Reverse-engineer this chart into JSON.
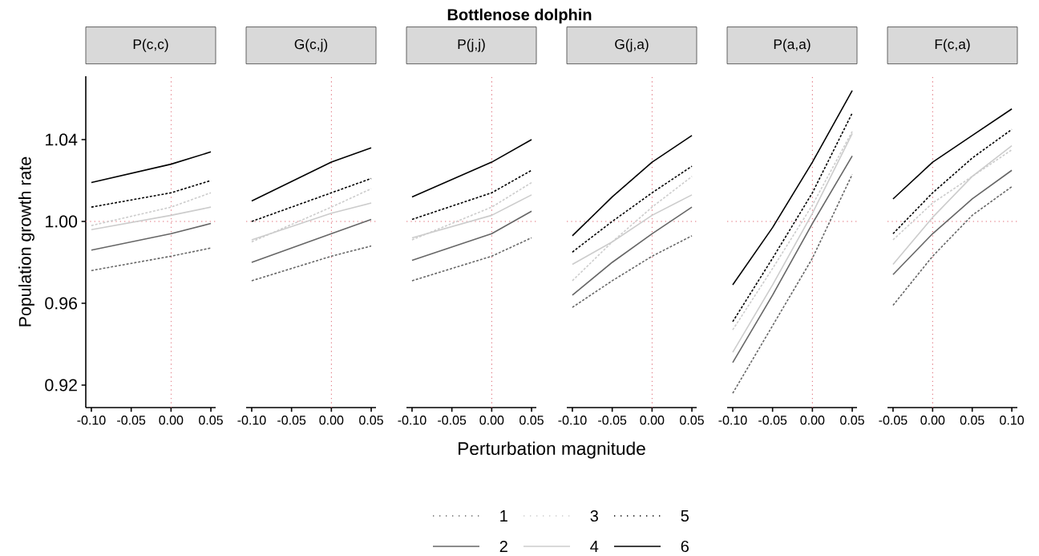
{
  "chart_data": [
    {
      "type": "line",
      "subtitle": "P(c,c)",
      "ylabel": "Population growth rate",
      "legend": "bottom",
      "line_style": "solid",
      "marker": "none",
      "xlim": [
        -0.107,
        0.056
      ],
      "ylim": [
        0.909,
        1.071
      ],
      "xticks": [
        {
          "value": -0.1,
          "label": "-0.10"
        },
        {
          "value": -0.05,
          "label": "-0.05"
        },
        {
          "value": 0,
          "label": "0.00"
        },
        {
          "value": 0.05,
          "label": "0.05"
        }
      ],
      "yticks": [
        {
          "value": 0.92,
          "label": "0.92"
        },
        {
          "value": 0.96,
          "label": "0.96"
        },
        {
          "value": 1.0,
          "label": "1.00"
        },
        {
          "value": 1.04,
          "label": "1.04"
        }
      ],
      "x": [
        -0.1,
        0,
        0.05
      ],
      "series": [
        {
          "name": "1",
          "color": "#666666",
          "line_style": "dotted",
          "values": [
            0.976,
            0.983,
            0.987
          ]
        },
        {
          "name": "2",
          "color": "#666666",
          "values": [
            0.986,
            0.994,
            0.999
          ]
        },
        {
          "name": "3",
          "color": "#cccccc",
          "line_style": "dotted",
          "values": [
            0.998,
            1.007,
            1.014
          ]
        },
        {
          "name": "4",
          "color": "#cccccc",
          "values": [
            0.996,
            1.003,
            1.007
          ]
        },
        {
          "name": "5",
          "color": "#000000",
          "line_style": "dotted",
          "values": [
            1.007,
            1.014,
            1.02
          ]
        },
        {
          "name": "6",
          "color": "#000000",
          "values": [
            1.019,
            1.028,
            1.034
          ]
        }
      ],
      "ref_lines": [
        {
          "axis": "x",
          "value": 0,
          "color": "#e0707a",
          "line_style": "dotted"
        },
        {
          "axis": "y",
          "value": 1.0,
          "color": "#e0707a",
          "line_style": "dotted"
        }
      ]
    },
    {
      "type": "line",
      "subtitle": "G(c,j)",
      "tick_labels": "x",
      "line_style": "solid",
      "marker": "none",
      "xlim": [
        -0.107,
        0.056
      ],
      "ylim": [
        0.909,
        1.071
      ],
      "xticks": [
        {
          "value": -0.1,
          "label": "-0.10"
        },
        {
          "value": -0.05,
          "label": "-0.05"
        },
        {
          "value": 0,
          "label": "0.00"
        },
        {
          "value": 0.05,
          "label": "0.05"
        }
      ],
      "x": [
        -0.1,
        0,
        0.05
      ],
      "series": [
        {
          "color": "#666666",
          "line_style": "dotted",
          "values": [
            0.971,
            0.983,
            0.988
          ]
        },
        {
          "color": "#666666",
          "values": [
            0.98,
            0.994,
            1.001
          ]
        },
        {
          "color": "#cccccc",
          "line_style": "dotted",
          "values": [
            0.99,
            1.007,
            1.016
          ]
        },
        {
          "color": "#cccccc",
          "values": [
            0.991,
            1.004,
            1.009
          ]
        },
        {
          "color": "#000000",
          "line_style": "dotted",
          "values": [
            1.0,
            1.014,
            1.021
          ]
        },
        {
          "color": "#000000",
          "values": [
            1.01,
            1.029,
            1.036
          ]
        }
      ],
      "ref_lines": [
        {
          "axis": "x",
          "value": 0,
          "color": "#e0707a",
          "line_style": "dotted"
        },
        {
          "axis": "y",
          "value": 1.0,
          "color": "#e0707a",
          "line_style": "dotted"
        }
      ]
    },
    {
      "type": "line",
      "title": "Bottlenose dolphin",
      "xlabel": "Perturbation magnitude",
      "subtitle": "P(j,j)",
      "tick_labels": "x",
      "line_style": "solid",
      "marker": "none",
      "xlim": [
        -0.107,
        0.056
      ],
      "ylim": [
        0.909,
        1.071
      ],
      "xticks": [
        {
          "value": -0.1,
          "label": "-0.10"
        },
        {
          "value": -0.05,
          "label": "-0.05"
        },
        {
          "value": 0,
          "label": "0.00"
        },
        {
          "value": 0.05,
          "label": "0.05"
        }
      ],
      "x": [
        -0.1,
        0,
        0.05
      ],
      "series": [
        {
          "color": "#666666",
          "line_style": "dotted",
          "values": [
            0.971,
            0.983,
            0.992
          ]
        },
        {
          "color": "#666666",
          "values": [
            0.981,
            0.994,
            1.005
          ]
        },
        {
          "color": "#cccccc",
          "line_style": "dotted",
          "values": [
            0.991,
            1.007,
            1.019
          ]
        },
        {
          "color": "#cccccc",
          "values": [
            0.992,
            1.003,
            1.013
          ]
        },
        {
          "color": "#000000",
          "line_style": "dotted",
          "values": [
            1.001,
            1.014,
            1.025
          ]
        },
        {
          "color": "#000000",
          "values": [
            1.012,
            1.029,
            1.04
          ]
        }
      ],
      "ref_lines": [
        {
          "axis": "x",
          "value": 0,
          "color": "#e0707a",
          "line_style": "dotted"
        },
        {
          "axis": "y",
          "value": 1.0,
          "color": "#e0707a",
          "line_style": "dotted"
        }
      ]
    },
    {
      "type": "line",
      "subtitle": "G(j,a)",
      "tick_labels": "x",
      "line_style": "solid",
      "marker": "none",
      "xlim": [
        -0.107,
        0.056
      ],
      "ylim": [
        0.909,
        1.071
      ],
      "xticks": [
        {
          "value": -0.1,
          "label": "-0.10"
        },
        {
          "value": -0.05,
          "label": "-0.05"
        },
        {
          "value": 0,
          "label": "0.00"
        },
        {
          "value": 0.05,
          "label": "0.05"
        }
      ],
      "x": [
        -0.1,
        -0.05,
        0,
        0.05
      ],
      "series": [
        {
          "color": "#666666",
          "line_style": "dotted",
          "values": [
            0.958,
            0.971,
            0.983,
            0.993
          ]
        },
        {
          "color": "#666666",
          "values": [
            0.964,
            0.98,
            0.994,
            1.007
          ]
        },
        {
          "color": "#cccccc",
          "line_style": "dotted",
          "values": [
            0.971,
            0.99,
            1.007,
            1.022
          ]
        },
        {
          "color": "#cccccc",
          "values": [
            0.979,
            0.99,
            1.003,
            1.013
          ]
        },
        {
          "color": "#000000",
          "line_style": "dotted",
          "values": [
            0.985,
            1.0,
            1.014,
            1.027
          ]
        },
        {
          "color": "#000000",
          "values": [
            0.993,
            1.012,
            1.029,
            1.042
          ]
        }
      ],
      "ref_lines": [
        {
          "axis": "x",
          "value": 0,
          "color": "#e0707a",
          "line_style": "dotted"
        },
        {
          "axis": "y",
          "value": 1.0,
          "color": "#e0707a",
          "line_style": "dotted"
        }
      ]
    },
    {
      "type": "line",
      "subtitle": "P(a,a)",
      "tick_labels": "x",
      "line_style": "solid",
      "marker": "none",
      "xlim": [
        -0.107,
        0.056
      ],
      "ylim": [
        0.909,
        1.071
      ],
      "xticks": [
        {
          "value": -0.1,
          "label": "-0.10"
        },
        {
          "value": -0.05,
          "label": "-0.05"
        },
        {
          "value": 0,
          "label": "0.00"
        },
        {
          "value": 0.05,
          "label": "0.05"
        }
      ],
      "x": [
        -0.1,
        -0.05,
        0,
        0.05
      ],
      "series": [
        {
          "color": "#666666",
          "line_style": "dotted",
          "values": [
            0.916,
            0.949,
            0.982,
            1.023
          ]
        },
        {
          "color": "#666666",
          "values": [
            0.931,
            0.964,
            0.999,
            1.032
          ]
        },
        {
          "color": "#cccccc",
          "line_style": "dotted",
          "values": [
            0.947,
            0.977,
            1.008,
            1.044
          ]
        },
        {
          "color": "#cccccc",
          "values": [
            0.936,
            0.969,
            1.004,
            1.043
          ]
        },
        {
          "color": "#000000",
          "line_style": "dotted",
          "values": [
            0.951,
            0.982,
            1.014,
            1.053
          ]
        },
        {
          "color": "#000000",
          "values": [
            0.969,
            0.997,
            1.029,
            1.064
          ]
        }
      ],
      "ref_lines": [
        {
          "axis": "x",
          "value": 0,
          "color": "#e0707a",
          "line_style": "dotted"
        },
        {
          "axis": "y",
          "value": 1.0,
          "color": "#e0707a",
          "line_style": "dotted"
        }
      ]
    },
    {
      "type": "line",
      "subtitle": "F(c,a)",
      "tick_labels": "x",
      "line_style": "solid",
      "marker": "none",
      "xlim": [
        -0.057,
        0.107
      ],
      "ylim": [
        0.909,
        1.071
      ],
      "xticks": [
        {
          "value": -0.05,
          "label": "-0.05"
        },
        {
          "value": 0,
          "label": "0.00"
        },
        {
          "value": 0.05,
          "label": "0.05"
        },
        {
          "value": 0.1,
          "label": "0.10"
        }
      ],
      "x": [
        -0.05,
        0,
        0.05,
        0.1
      ],
      "series": [
        {
          "color": "#666666",
          "line_style": "dotted",
          "values": [
            0.959,
            0.983,
            1.003,
            1.017
          ]
        },
        {
          "color": "#666666",
          "values": [
            0.974,
            0.994,
            1.011,
            1.025
          ]
        },
        {
          "color": "#cccccc",
          "line_style": "dotted",
          "values": [
            0.991,
            1.009,
            1.022,
            1.035
          ]
        },
        {
          "color": "#cccccc",
          "values": [
            0.979,
            1.002,
            1.022,
            1.037
          ]
        },
        {
          "color": "#000000",
          "line_style": "dotted",
          "values": [
            0.994,
            1.014,
            1.031,
            1.045
          ]
        },
        {
          "color": "#000000",
          "values": [
            1.011,
            1.029,
            1.042,
            1.055
          ]
        }
      ],
      "ref_lines": [
        {
          "axis": "x",
          "value": 0,
          "color": "#e0707a",
          "line_style": "dotted"
        },
        {
          "axis": "y",
          "value": 1.0,
          "color": "#e0707a",
          "line_style": "dotted"
        }
      ]
    }
  ]
}
